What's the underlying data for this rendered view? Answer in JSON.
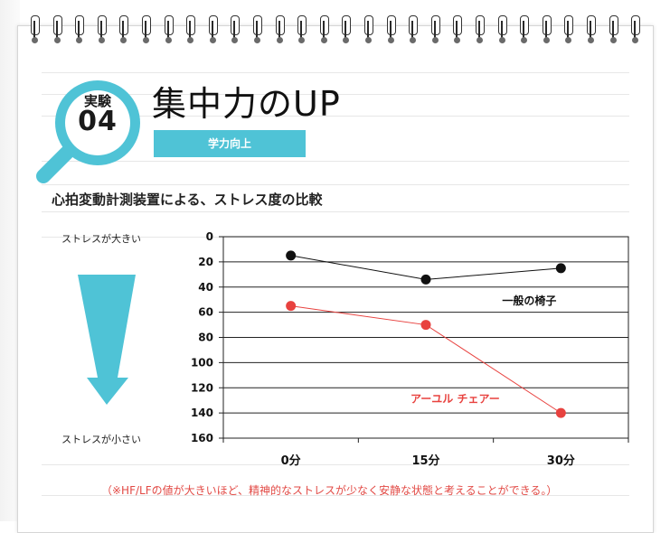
{
  "experiment": {
    "label": "実験",
    "number": "04"
  },
  "title": "集中力のUP",
  "tag": "学力向上",
  "subtitle": "心拍変動計測装置による、ストレス度の比較",
  "stress_high_label": "ストレスが大きい",
  "stress_low_label": "ストレスが小さい",
  "footnote": "（※HF/LFの値が大きいほど、精神的なストレスが少なく安静な状態と考えることができる。）",
  "colors": {
    "accent": "#4fc3d6",
    "series_black": "#111111",
    "series_red": "#e8423f"
  },
  "chart_data": {
    "type": "line",
    "title": "心拍変動計測装置による、ストレス度の比較",
    "categories": [
      "0分",
      "15分",
      "30分"
    ],
    "y_ticks": [
      "0",
      "20",
      "40",
      "60",
      "80",
      "100",
      "120",
      "140",
      "160"
    ],
    "ylim": [
      0,
      160
    ],
    "y_inverted": true,
    "grid": true,
    "series": [
      {
        "name": "一般の椅子",
        "color": "#111111",
        "values": [
          15,
          34,
          25
        ]
      },
      {
        "name": "アーユル チェアー",
        "color": "#e8423f",
        "values": [
          55,
          70,
          140
        ]
      }
    ]
  }
}
